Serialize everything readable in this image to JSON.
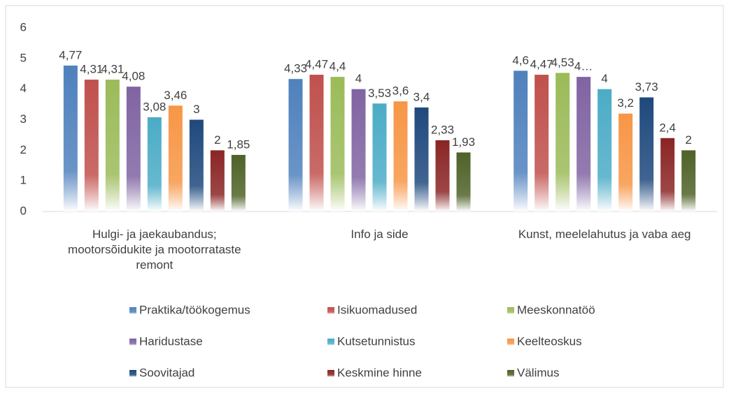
{
  "chart_data": {
    "type": "bar",
    "categories": [
      "Hulgi- ja jaekaubandus; mootorsõidukite ja mootorrataste remont",
      "Info ja side",
      "Kunst, meelelahutus ja vaba aeg"
    ],
    "series": [
      {
        "name": "Praktika/töökogemus",
        "color": "#4f81bd",
        "values": [
          4.77,
          4.33,
          4.6
        ],
        "value_labels": [
          "4,77",
          "4,33",
          "4,6"
        ]
      },
      {
        "name": "Isikuomadused",
        "color": "#c0504d",
        "values": [
          4.31,
          4.47,
          4.47
        ],
        "value_labels": [
          "4,31",
          "4,47",
          "4,47"
        ]
      },
      {
        "name": "Meeskonnatöö",
        "color": "#9bbb59",
        "values": [
          4.31,
          4.4,
          4.53
        ],
        "value_labels": [
          "4,31",
          "4,4",
          "4,53"
        ]
      },
      {
        "name": "Haridustase",
        "color": "#8064a2",
        "values": [
          4.08,
          4,
          4.4
        ],
        "value_labels": [
          "4,08",
          "4",
          "4…"
        ]
      },
      {
        "name": "Kutsetunnistus",
        "color": "#4bacc6",
        "values": [
          3.08,
          3.53,
          4
        ],
        "value_labels": [
          "3,08",
          "3,53",
          "4"
        ]
      },
      {
        "name": "Keelteoskus",
        "color": "#f79646",
        "values": [
          3.46,
          3.6,
          3.2
        ],
        "value_labels": [
          "3,46",
          "3,6",
          "3,2"
        ]
      },
      {
        "name": "Soovitajad",
        "color": "#1f497d",
        "values": [
          3,
          3.4,
          3.73
        ],
        "value_labels": [
          "3",
          "3,4",
          "3,73"
        ]
      },
      {
        "name": "Keskmine hinne",
        "color": "#8b2525",
        "values": [
          2,
          2.33,
          2.4
        ],
        "value_labels": [
          "2",
          "2,33",
          "2,4"
        ]
      },
      {
        "name": "Välimus",
        "color": "#4f6228",
        "values": [
          1.85,
          1.93,
          2
        ],
        "value_labels": [
          "1,85",
          "1,93",
          "2"
        ]
      }
    ],
    "ylim": [
      0,
      6
    ],
    "yticks": [
      0,
      1,
      2,
      3,
      4,
      5,
      6
    ],
    "grid": false,
    "legend": "bottom"
  }
}
